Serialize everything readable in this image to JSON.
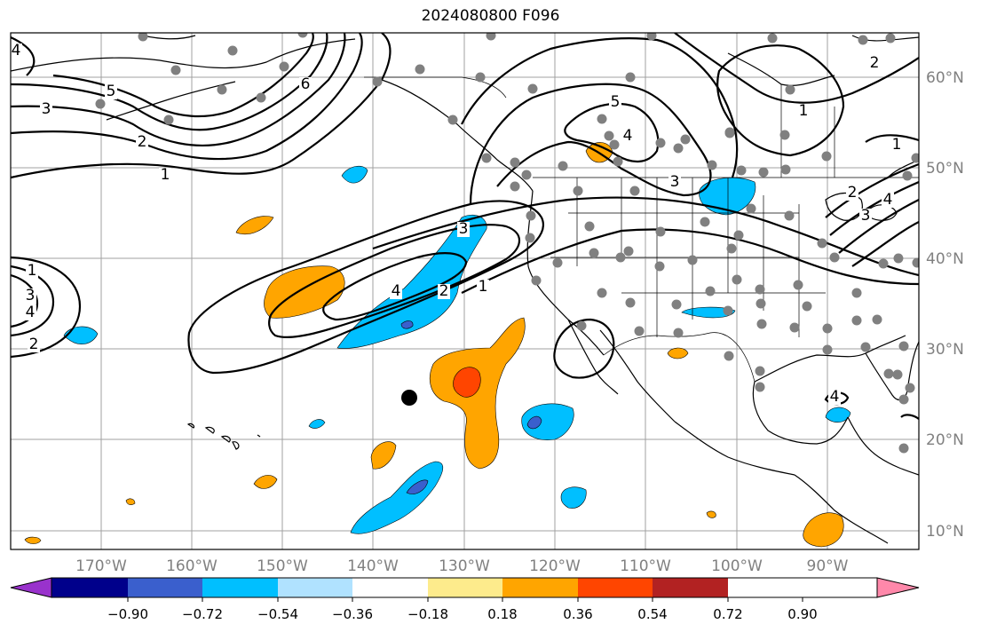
{
  "title": "2024080800 F096",
  "lon_ticks": [
    "170°W",
    "160°W",
    "150°W",
    "140°W",
    "130°W",
    "120°W",
    "110°W",
    "100°W",
    "90°W"
  ],
  "lat_ticks": [
    "60°N",
    "50°N",
    "40°N",
    "30°N",
    "20°N",
    "10°N"
  ],
  "colorbar": {
    "ticks": [
      "−0.90",
      "−0.72",
      "−0.54",
      "−0.36",
      "−0.18",
      "0.18",
      "0.36",
      "0.54",
      "0.72",
      "0.90"
    ],
    "colors": [
      "#9932cc",
      "#00008b",
      "#3a5fcd",
      "#00bfff",
      "#b0e2ff",
      "#ffffff",
      "#fdeb8c",
      "#ffa500",
      "#ff4500",
      "#b22222",
      "#ff88aa"
    ]
  },
  "contour_labels": [
    {
      "text": "5",
      "role": "aleutian-low"
    },
    {
      "text": "3",
      "role": "aleutian-low"
    },
    {
      "text": "2",
      "role": "aleutian-low"
    },
    {
      "text": "1",
      "role": "aleutian-low"
    },
    {
      "text": "6",
      "role": "aleutian-low"
    },
    {
      "text": "4",
      "role": "aleutian-low"
    },
    {
      "text": "1",
      "role": "west-low"
    },
    {
      "text": "3",
      "role": "west-low"
    },
    {
      "text": "4",
      "role": "west-low"
    },
    {
      "text": "2",
      "role": "west-low"
    },
    {
      "text": "3",
      "role": "pacific-feature"
    },
    {
      "text": "4",
      "role": "pacific-feature"
    },
    {
      "text": "2",
      "role": "pacific-feature"
    },
    {
      "text": "1",
      "role": "pacific-feature"
    },
    {
      "text": "5",
      "role": "canada-feature"
    },
    {
      "text": "4",
      "role": "canada-feature"
    },
    {
      "text": "3",
      "role": "canada-feature"
    },
    {
      "text": "1",
      "role": "hudson-feature"
    },
    {
      "text": "2",
      "role": "hudson-feature"
    },
    {
      "text": "1",
      "role": "east-feature"
    },
    {
      "text": "2",
      "role": "east-feature"
    },
    {
      "text": "3",
      "role": "east-feature"
    },
    {
      "text": "4",
      "role": "east-feature"
    },
    {
      "text": "4",
      "role": "caribbean-feature"
    }
  ],
  "marker": {
    "symbol": "black dot"
  },
  "stations": {
    "symbol": "gray dots"
  }
}
